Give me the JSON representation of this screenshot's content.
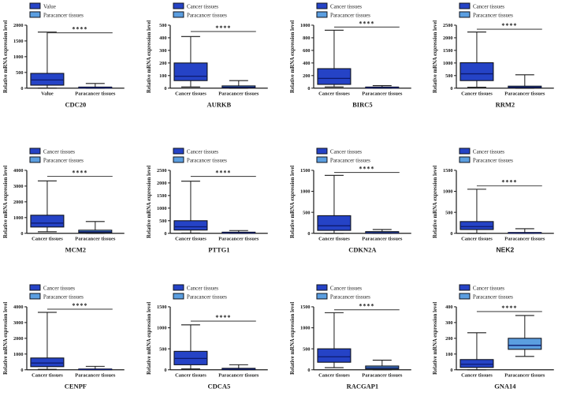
{
  "figure": {
    "ylabel": "Relative mRNA expression level",
    "significance_marker": "****",
    "colors": {
      "cancer_fill": "#2543c6",
      "paracancer_fill": "#5b9ee0",
      "box_border": "#10131c",
      "median_line": "#0d1a6e",
      "axis": "#1a1a1a",
      "sig_line": "#4a4a4a",
      "text": "#1a1a1a"
    }
  },
  "chart_data": [
    {
      "type": "box",
      "gene": "CDC20",
      "legend": [
        "Value",
        "Paracancer tissues"
      ],
      "categories": [
        "Value",
        "Paracancer tissues"
      ],
      "ylabel": "Relative mRNA expression level",
      "ylim": [
        0,
        2000
      ],
      "yticks": [
        0,
        500,
        1000,
        1500,
        2000
      ],
      "sig_label": "****",
      "sig_y": 1760,
      "series": [
        {
          "name": "Value",
          "min": 5,
          "q1": 95,
          "median": 260,
          "q3": 470,
          "max": 1780,
          "color": "#2543c6"
        },
        {
          "name": "Paracancer tissues",
          "min": 0,
          "q1": 5,
          "median": 15,
          "q3": 35,
          "max": 150,
          "color": "#5b9ee0"
        }
      ]
    },
    {
      "type": "box",
      "gene": "AURKB",
      "legend": [
        "Cancer tissues",
        "Paracancer tissues"
      ],
      "categories": [
        "Cancer tissues",
        "Paracancer tissues"
      ],
      "ylabel": "Relative mRNA expression level",
      "ylim": [
        0,
        500
      ],
      "yticks": [
        0,
        100,
        200,
        300,
        400,
        500
      ],
      "sig_label": "****",
      "sig_y": 450,
      "series": [
        {
          "name": "Cancer tissues",
          "min": 10,
          "q1": 60,
          "median": 95,
          "q3": 200,
          "max": 410,
          "color": "#2543c6"
        },
        {
          "name": "Paracancer tissues",
          "min": 0,
          "q1": 2,
          "median": 8,
          "q3": 18,
          "max": 60,
          "color": "#5b9ee0"
        }
      ]
    },
    {
      "type": "box",
      "gene": "BIRC5",
      "legend": [
        "Cancer tissues",
        "Paracancer tissues"
      ],
      "categories": [
        "Cancer tissues",
        "Paracancer tissues"
      ],
      "ylabel": "Relative mRNA expression level",
      "ylim": [
        0,
        1000
      ],
      "yticks": [
        0,
        200,
        400,
        600,
        800,
        1000
      ],
      "sig_label": "****",
      "sig_y": 970,
      "series": [
        {
          "name": "Cancer tissues",
          "min": 20,
          "q1": 60,
          "median": 155,
          "q3": 310,
          "max": 920,
          "color": "#2543c6"
        },
        {
          "name": "Paracancer tissues",
          "min": 0,
          "q1": 2,
          "median": 8,
          "q3": 18,
          "max": 40,
          "color": "#5b9ee0"
        }
      ]
    },
    {
      "type": "box",
      "gene": "RRM2",
      "legend": [
        "Cancer tissues",
        "Paracancer tissues"
      ],
      "categories": [
        "Cancer tissues",
        "Paracancer tissues"
      ],
      "ylabel": "Relative mRNA expression level",
      "ylim": [
        0,
        2500
      ],
      "yticks": [
        0,
        500,
        1000,
        1500,
        2000,
        2500
      ],
      "sig_label": "****",
      "sig_y": 2340,
      "series": [
        {
          "name": "Cancer tissues",
          "min": 40,
          "q1": 300,
          "median": 570,
          "q3": 1010,
          "max": 2230,
          "color": "#2543c6"
        },
        {
          "name": "Paracancer tissues",
          "min": 0,
          "q1": 10,
          "median": 40,
          "q3": 80,
          "max": 530,
          "color": "#5b9ee0"
        }
      ]
    },
    {
      "type": "box",
      "gene": "MCM2",
      "legend": [
        "Cancer tissues",
        "Paracancer tissues"
      ],
      "categories": [
        "Cancer tissues",
        "Paracancer tissues"
      ],
      "ylabel": "Relative mRNA expression level",
      "ylim": [
        0,
        4000
      ],
      "yticks": [
        0,
        1000,
        2000,
        3000,
        4000
      ],
      "sig_label": "****",
      "sig_y": 3620,
      "series": [
        {
          "name": "Cancer tissues",
          "min": 100,
          "q1": 400,
          "median": 650,
          "q3": 1150,
          "max": 3330,
          "color": "#2543c6"
        },
        {
          "name": "Paracancer tissues",
          "min": 0,
          "q1": 40,
          "median": 100,
          "q3": 200,
          "max": 750,
          "color": "#5b9ee0"
        }
      ]
    },
    {
      "type": "box",
      "gene": "PTTG1",
      "legend": [
        "Cancer tissues",
        "Paracancer tissues"
      ],
      "categories": [
        "Cancer tissues",
        "Paracancer tissues"
      ],
      "ylabel": "Relative mRNA expression level",
      "ylim": [
        0,
        2500
      ],
      "yticks": [
        0,
        500,
        1000,
        1500,
        2000,
        2500
      ],
      "sig_label": "****",
      "sig_y": 2260,
      "series": [
        {
          "name": "Cancer tissues",
          "min": 10,
          "q1": 130,
          "median": 260,
          "q3": 500,
          "max": 2070,
          "color": "#2543c6"
        },
        {
          "name": "Paracancer tissues",
          "min": 0,
          "q1": 5,
          "median": 20,
          "q3": 45,
          "max": 110,
          "color": "#5b9ee0"
        }
      ]
    },
    {
      "type": "box",
      "gene": "CDKN2A",
      "legend": [
        "Cancer tissues",
        "Paracancer tissues"
      ],
      "categories": [
        "Cancer tissues",
        "Paracancer tissues"
      ],
      "ylabel": "Relative mRNA expression level",
      "ylim": [
        0,
        1500
      ],
      "yticks": [
        0,
        500,
        1000,
        1500
      ],
      "sig_label": "****",
      "sig_y": 1450,
      "series": [
        {
          "name": "Cancer tissues",
          "min": 0,
          "q1": 70,
          "median": 180,
          "q3": 420,
          "max": 1380,
          "color": "#2543c6"
        },
        {
          "name": "Paracancer tissues",
          "min": 0,
          "q1": 2,
          "median": 15,
          "q3": 40,
          "max": 90,
          "color": "#5b9ee0"
        }
      ]
    },
    {
      "type": "box",
      "gene": "NEK2",
      "label_style": "sans",
      "legend": [
        "Cancer tissues",
        "Paracancer tissues"
      ],
      "categories": [
        "Cancer tissues",
        "Paracancer tissues"
      ],
      "ylabel": "Relative mRNA expression level",
      "ylim": [
        0,
        1500
      ],
      "yticks": [
        0,
        500,
        1000,
        1500
      ],
      "sig_label": "****",
      "sig_y": 1130,
      "series": [
        {
          "name": "Cancer tissues",
          "min": 0,
          "q1": 90,
          "median": 160,
          "q3": 280,
          "max": 1050,
          "color": "#2543c6"
        },
        {
          "name": "Paracancer tissues",
          "min": 0,
          "q1": 0,
          "median": 8,
          "q3": 20,
          "max": 110,
          "color": "#5b9ee0"
        }
      ]
    },
    {
      "type": "box",
      "gene": "CENPF",
      "legend": [
        "Cancer tissues",
        "Paracancer tissues"
      ],
      "categories": [
        "Cancer tissues",
        "Paracancer tissues"
      ],
      "ylabel": "Relative mRNA expression level",
      "ylim": [
        0,
        4000
      ],
      "yticks": [
        0,
        1000,
        2000,
        3000,
        4000
      ],
      "sig_label": "****",
      "sig_y": 3850,
      "series": [
        {
          "name": "Cancer tissues",
          "min": 30,
          "q1": 200,
          "median": 430,
          "q3": 750,
          "max": 3650,
          "color": "#2543c6"
        },
        {
          "name": "Paracancer tissues",
          "min": 0,
          "q1": 5,
          "median": 20,
          "q3": 50,
          "max": 220,
          "color": "#5b9ee0"
        }
      ]
    },
    {
      "type": "box",
      "gene": "CDCA5",
      "legend": [
        "Cancer tissues",
        "Paracancer tissues"
      ],
      "categories": [
        "Cancer tissues",
        "Paracancer tissues"
      ],
      "ylabel": "Relative mRNA expression level",
      "ylim": [
        0,
        1500
      ],
      "yticks": [
        0,
        500,
        1000,
        1500
      ],
      "sig_label": "****",
      "sig_y": 1160,
      "series": [
        {
          "name": "Cancer tissues",
          "min": 20,
          "q1": 120,
          "median": 270,
          "q3": 440,
          "max": 1070,
          "color": "#2543c6"
        },
        {
          "name": "Paracancer tissues",
          "min": 0,
          "q1": 2,
          "median": 15,
          "q3": 35,
          "max": 120,
          "color": "#5b9ee0"
        }
      ]
    },
    {
      "type": "box",
      "gene": "RACGAP1",
      "legend": [
        "Cancer tissues",
        "Paracancer tissues"
      ],
      "categories": [
        "Cancer tissues",
        "Paracancer tissues"
      ],
      "ylabel": "Relative mRNA expression level",
      "ylim": [
        0,
        1500
      ],
      "yticks": [
        0,
        500,
        1000,
        1500
      ],
      "sig_label": "****",
      "sig_y": 1430,
      "series": [
        {
          "name": "Cancer tissues",
          "min": 50,
          "q1": 180,
          "median": 310,
          "q3": 500,
          "max": 1360,
          "color": "#2543c6"
        },
        {
          "name": "Paracancer tissues",
          "min": 0,
          "q1": 20,
          "median": 50,
          "q3": 90,
          "max": 230,
          "color": "#5b9ee0"
        }
      ]
    },
    {
      "type": "box",
      "gene": "GNA14",
      "legend": [
        "Cancer tissues",
        "Paracancer tissues"
      ],
      "categories": [
        "Cancer tissues",
        "Paracancer tissues"
      ],
      "ylabel": "Relative mRNA expression level",
      "ylim": [
        0,
        400
      ],
      "yticks": [
        0,
        100,
        200,
        300,
        400
      ],
      "sig_label": "****",
      "sig_y": 370,
      "series": [
        {
          "name": "Cancer tissues",
          "min": 0,
          "q1": 15,
          "median": 35,
          "q3": 65,
          "max": 235,
          "color": "#2543c6"
        },
        {
          "name": "Paracancer tissues",
          "min": 85,
          "q1": 130,
          "median": 155,
          "q3": 200,
          "max": 345,
          "color": "#5b9ee0"
        }
      ]
    }
  ]
}
